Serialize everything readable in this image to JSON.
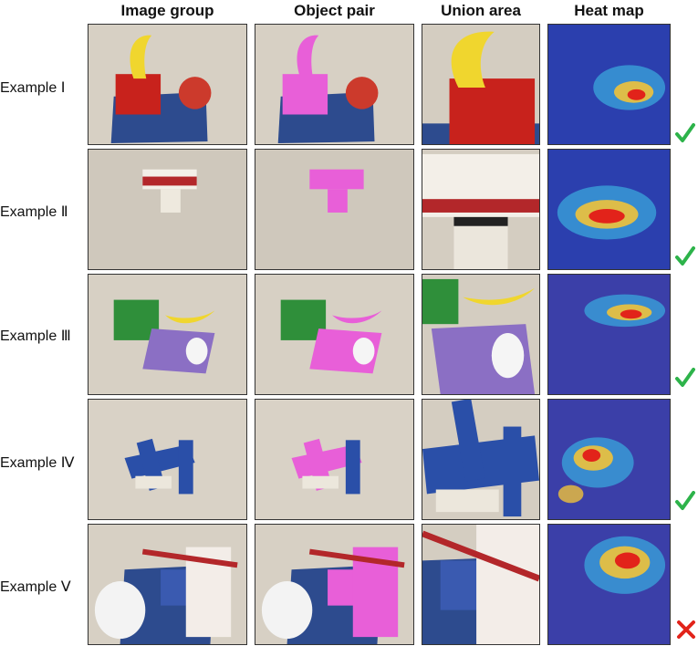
{
  "headers": [
    "Image group",
    "Object pair",
    "Union area",
    "Heat map"
  ],
  "rows": [
    {
      "label": "Example Ⅰ",
      "result": "check"
    },
    {
      "label": "Example Ⅱ",
      "result": "check"
    },
    {
      "label": "Example Ⅲ",
      "result": "check"
    },
    {
      "label": "Example Ⅳ",
      "result": "check"
    },
    {
      "label": "Example Ⅴ",
      "result": "cross"
    }
  ],
  "colors": {
    "check": "#2db34a",
    "cross": "#e2231a",
    "highlight": "#e85fd8"
  }
}
